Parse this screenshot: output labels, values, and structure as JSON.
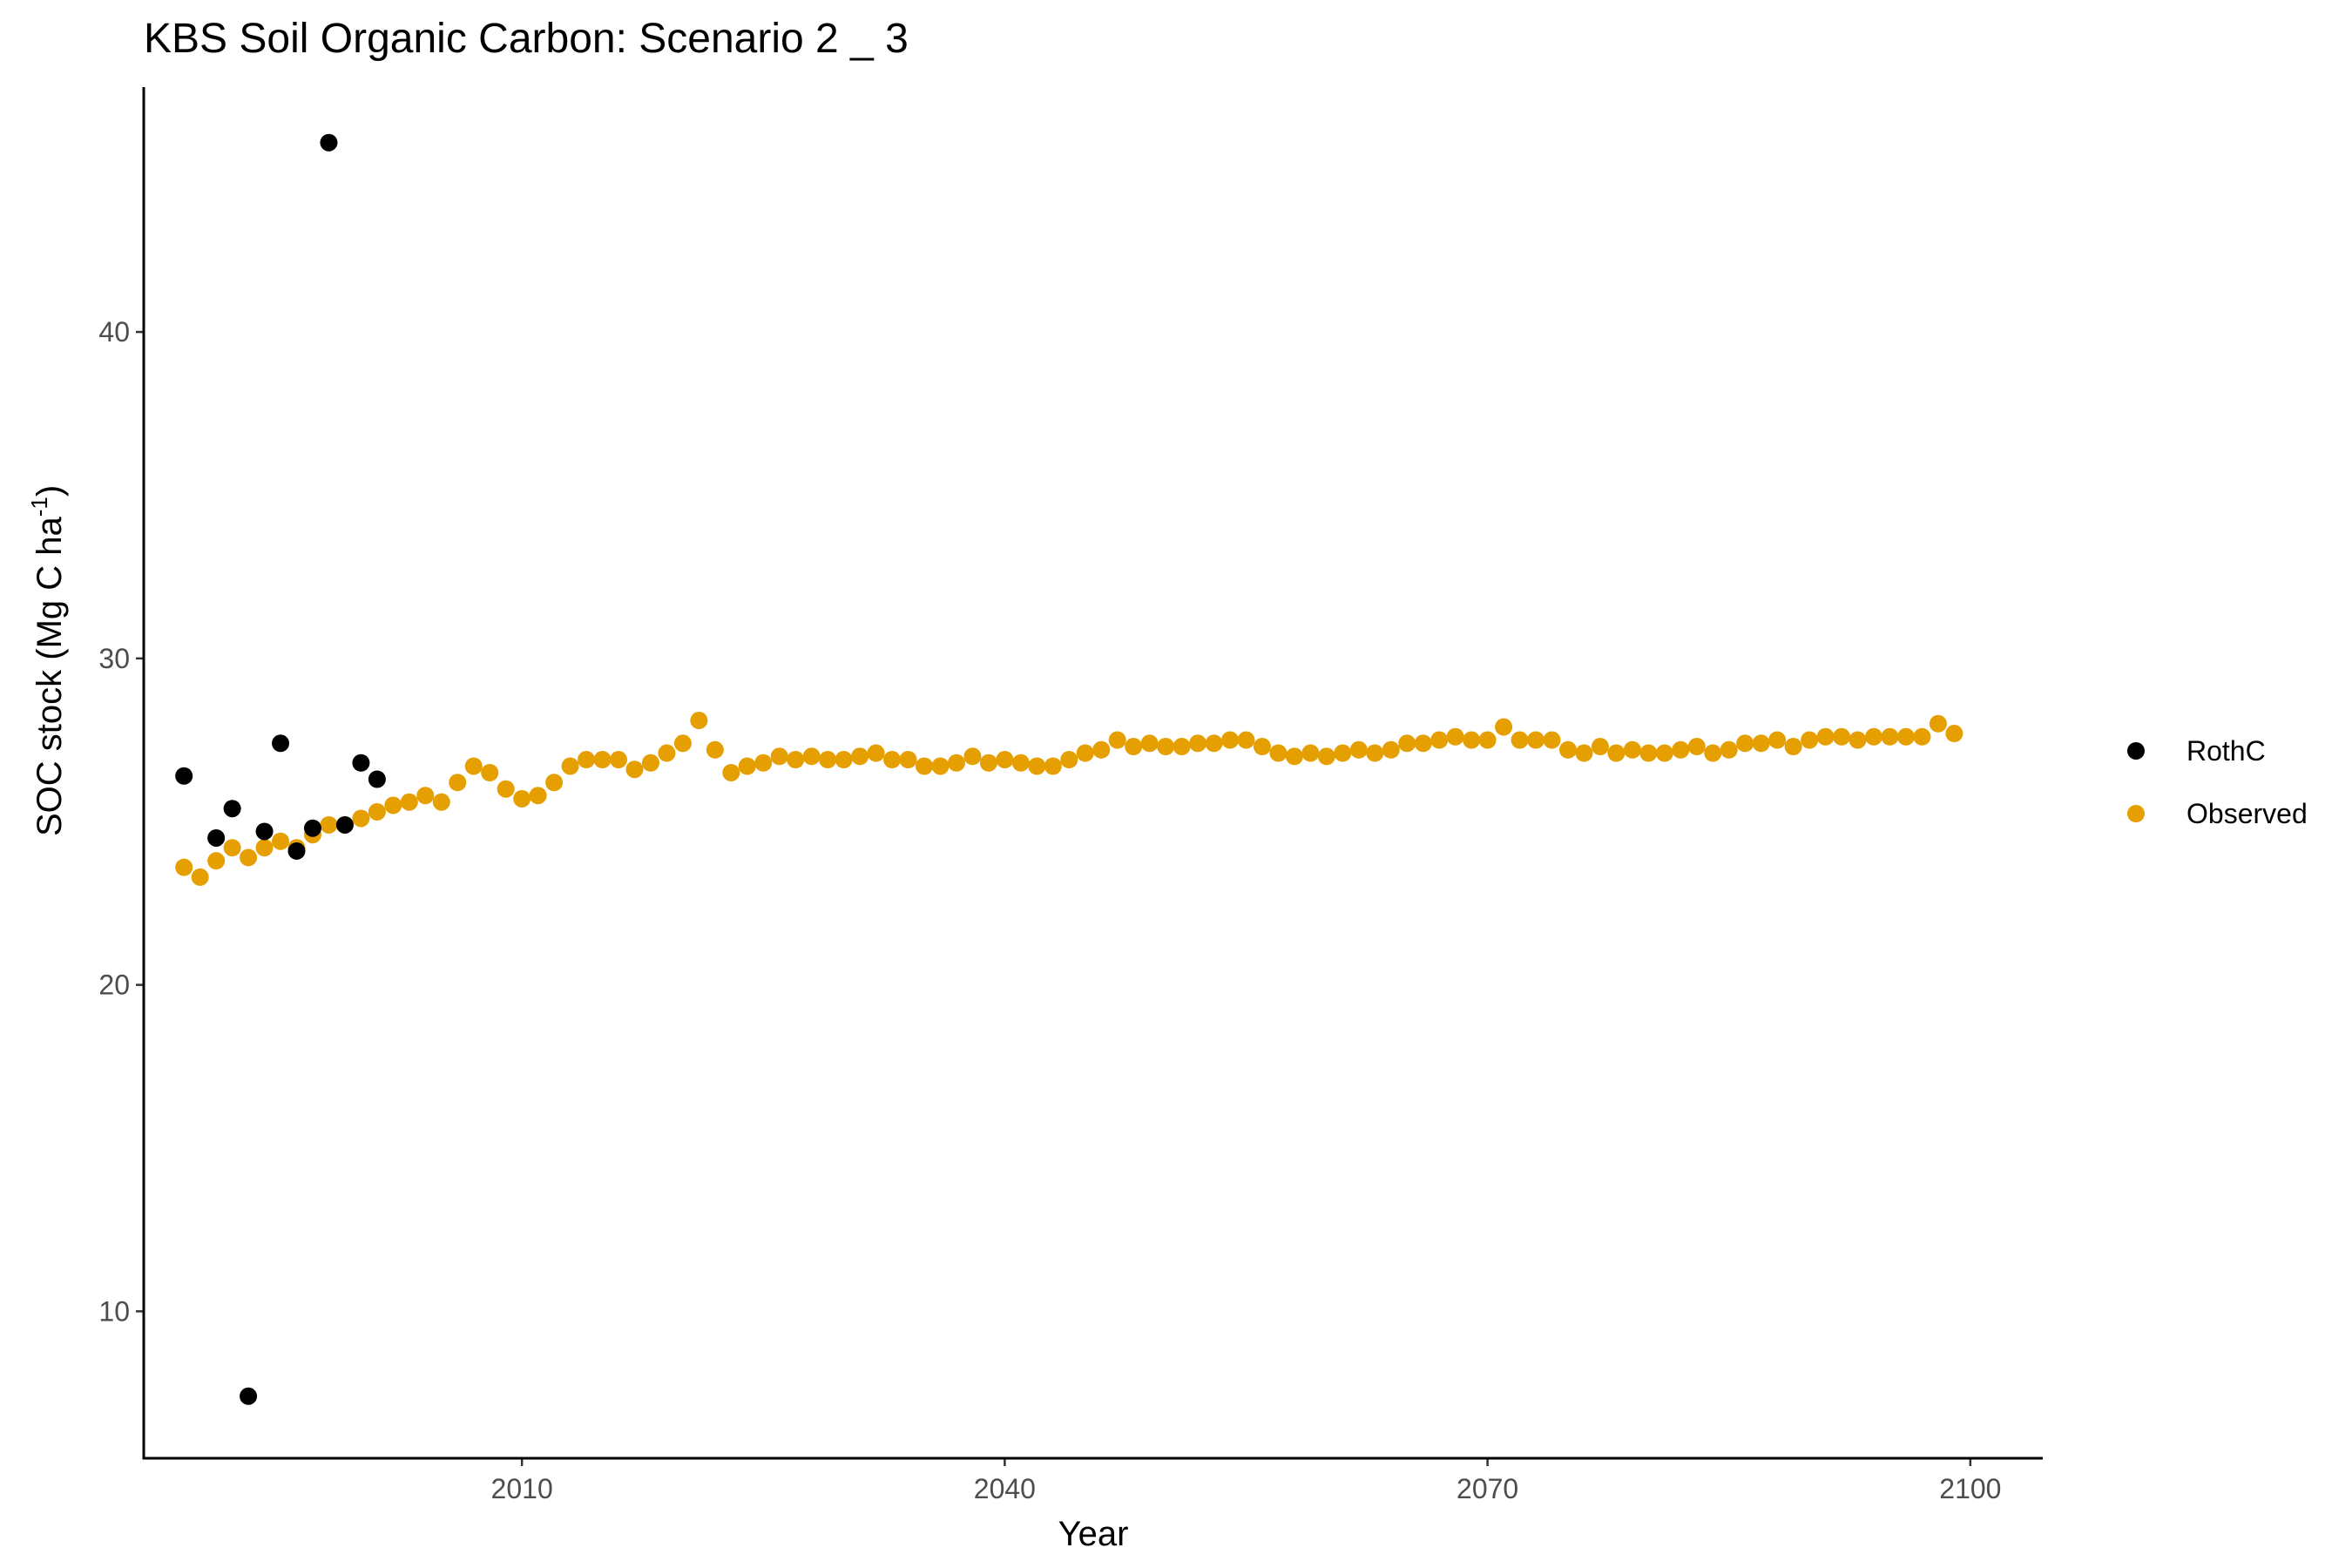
{
  "chart_data": {
    "type": "scatter",
    "title": "KBS Soil Organic Carbon: Scenario  2 _ 3",
    "xlabel": "Year",
    "ylabel": "SOC stock (Mg C ha",
    "ylabel_superscript": "-1",
    "ylabel_suffix": ")",
    "xlim": [
      1986.5,
      2104.5
    ],
    "ylim": [
      5.5,
      47.5
    ],
    "x_ticks": [
      2010,
      2040,
      2070,
      2100
    ],
    "y_ticks": [
      10,
      20,
      30,
      40
    ],
    "grid": false,
    "legend_position": "right",
    "series": [
      {
        "name": "RothC",
        "color": "#000000",
        "x": [
          1989,
          1991,
          1992,
          1993,
          1994,
          1995,
          1996,
          1997,
          1998,
          1999,
          2000,
          2001
        ],
        "y": [
          26.4,
          24.5,
          25.4,
          7.4,
          24.7,
          27.4,
          24.1,
          24.8,
          45.8,
          24.9,
          26.8,
          26.3
        ]
      },
      {
        "name": "Observed",
        "color": "#E69F00",
        "x": [
          1989,
          1990,
          1991,
          1992,
          1993,
          1994,
          1995,
          1996,
          1997,
          1998,
          1999,
          2000,
          2001,
          2002,
          2003,
          2004,
          2005,
          2006,
          2007,
          2008,
          2009,
          2010,
          2011,
          2012,
          2013,
          2014,
          2015,
          2016,
          2017,
          2018,
          2019,
          2020,
          2021,
          2022,
          2023,
          2024,
          2025,
          2026,
          2027,
          2028,
          2029,
          2030,
          2031,
          2032,
          2033,
          2034,
          2035,
          2036,
          2037,
          2038,
          2039,
          2040,
          2041,
          2042,
          2043,
          2044,
          2045,
          2046,
          2047,
          2048,
          2049,
          2050,
          2051,
          2052,
          2053,
          2054,
          2055,
          2056,
          2057,
          2058,
          2059,
          2060,
          2061,
          2062,
          2063,
          2064,
          2065,
          2066,
          2067,
          2068,
          2069,
          2070,
          2071,
          2072,
          2073,
          2074,
          2075,
          2076,
          2077,
          2078,
          2079,
          2080,
          2081,
          2082,
          2083,
          2084,
          2085,
          2086,
          2087,
          2088,
          2089,
          2090,
          2091,
          2092,
          2093,
          2094,
          2095,
          2096,
          2097,
          2098,
          2099
        ],
        "y": [
          23.6,
          23.3,
          23.8,
          24.2,
          23.9,
          24.2,
          24.4,
          24.2,
          24.6,
          24.9,
          24.9,
          25.1,
          25.3,
          25.5,
          25.6,
          25.8,
          25.6,
          26.2,
          26.7,
          26.5,
          26.0,
          25.7,
          25.8,
          26.2,
          26.7,
          26.9,
          26.9,
          26.9,
          26.6,
          26.8,
          27.1,
          27.4,
          28.1,
          27.2,
          26.5,
          26.7,
          26.8,
          27.0,
          26.9,
          27.0,
          26.9,
          26.9,
          27.0,
          27.1,
          26.9,
          26.9,
          26.7,
          26.7,
          26.8,
          27.0,
          26.8,
          26.9,
          26.8,
          26.7,
          26.7,
          26.9,
          27.1,
          27.2,
          27.5,
          27.3,
          27.4,
          27.3,
          27.3,
          27.4,
          27.4,
          27.5,
          27.5,
          27.3,
          27.1,
          27.0,
          27.1,
          27.0,
          27.1,
          27.2,
          27.1,
          27.2,
          27.4,
          27.4,
          27.5,
          27.6,
          27.5,
          27.5,
          27.9,
          27.5,
          27.5,
          27.5,
          27.2,
          27.1,
          27.3,
          27.1,
          27.2,
          27.1,
          27.1,
          27.2,
          27.3,
          27.1,
          27.2,
          27.4,
          27.4,
          27.5,
          27.3,
          27.5,
          27.6,
          27.6,
          27.5,
          27.6,
          27.6,
          27.6,
          27.6,
          28.0,
          27.7
        ]
      }
    ]
  }
}
